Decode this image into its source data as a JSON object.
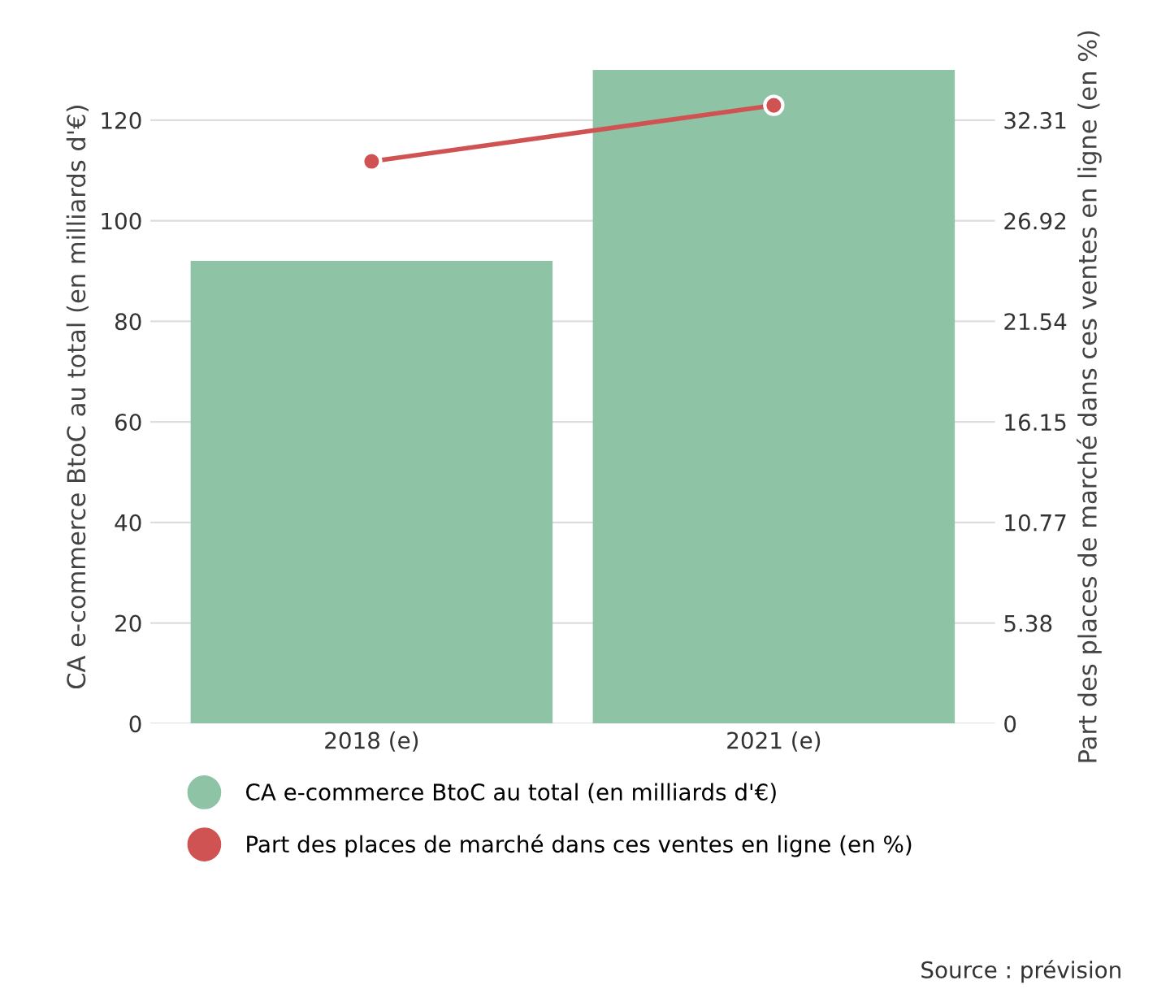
{
  "chart_data": {
    "type": "bar",
    "categories": [
      "2018 (e)",
      "2021 (e)"
    ],
    "series": [
      {
        "name": "CA e-commerce BtoC au total (en milliards d'€)",
        "color": "#8fc3a6",
        "values": [
          92,
          130
        ]
      },
      {
        "name": "Part des places de marché dans ces ventes en ligne (en %)",
        "color": "#d05353",
        "type": "line",
        "axis": "y2",
        "marker": "circle",
        "values": [
          30.1,
          33.1
        ]
      }
    ],
    "ylabel": "CA e-commerce BtoC au total (en milliards d'€)",
    "y2label": "Part des places de marché dans ces ventes en ligne (en %)",
    "ylim": [
      0,
      130
    ],
    "yticks": [
      0,
      20,
      40,
      60,
      80,
      100,
      120
    ],
    "y2lim": [
      0,
      35.0
    ],
    "y2ticks": [
      0,
      5.38,
      10.77,
      16.15,
      21.54,
      26.92,
      32.31
    ],
    "grid": "y",
    "legend": "bottom",
    "annotations": [
      "Source : prévision"
    ]
  }
}
